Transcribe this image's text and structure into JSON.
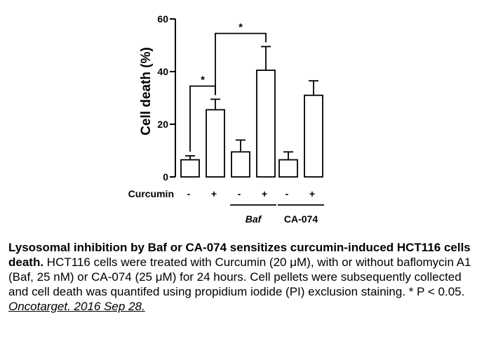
{
  "chart_data": {
    "type": "bar",
    "ylabel": "Cell death (%)",
    "ylim": [
      0,
      60
    ],
    "yticks": [
      0,
      20,
      40,
      60
    ],
    "row_label": "Curcumin",
    "categories": [
      "-",
      "+",
      "-",
      "+",
      "-",
      "+"
    ],
    "values": [
      6.5,
      25.5,
      9.5,
      40.5,
      6.5,
      31
    ],
    "errors": [
      1.5,
      4,
      4.5,
      9,
      3,
      5.5
    ],
    "groups": [
      {
        "label": "Baf",
        "italic": true,
        "bars": [
          2,
          3
        ]
      },
      {
        "label": "CA-074",
        "italic": false,
        "bars": [
          4,
          5
        ]
      }
    ],
    "significance": [
      {
        "bars": [
          0,
          1
        ],
        "label": "*",
        "level": 34.5
      },
      {
        "bars": [
          1,
          3
        ],
        "label": "*",
        "level": 54.5
      }
    ]
  },
  "caption": {
    "bold": "Lysosomal inhibition by Baf or CA-074 sensitizes curcumin-induced HCT116 cells death.",
    "text": " HCT116 cells were treated with Curcumin (20 μM), with or without baflomycin A1 (Baf, 25 nM) or CA-074 (25 μM) for 24 hours. Cell pellets were subsequently collected and cell death was quantifed using propidium iodide (PI) exclusion staining. * P < 0.05. ",
    "citation": "Oncotarget. 2016 Sep 28."
  },
  "colors": {
    "bar_fill": "#ffffff",
    "stroke": "#000000"
  }
}
